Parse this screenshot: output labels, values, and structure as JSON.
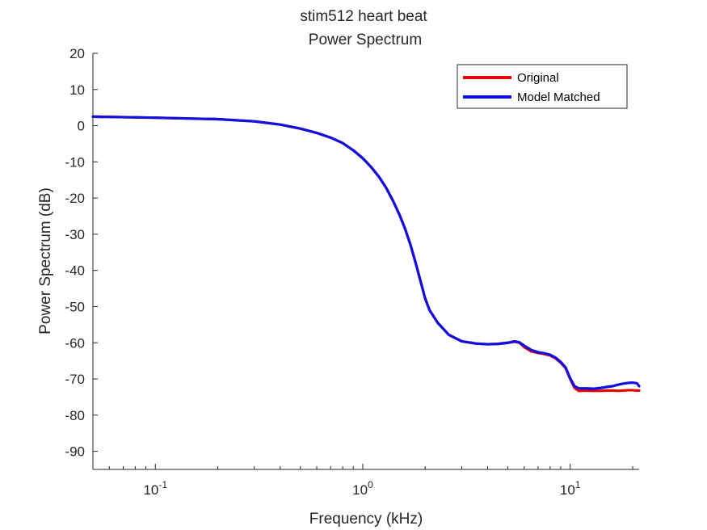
{
  "chart_data": {
    "type": "line",
    "title": "stim512 heart beat",
    "subtitle": "Power Spectrum",
    "xlabel": "Frequency (kHz)",
    "ylabel": "Power Spectrum (dB)",
    "x_scale": "log",
    "xlim": [
      0.05,
      21.5
    ],
    "ylim": [
      -95,
      20
    ],
    "x_ticks": [
      {
        "value": 0.1,
        "base": "10",
        "exp": "-1"
      },
      {
        "value": 1,
        "base": "10",
        "exp": "0"
      },
      {
        "value": 10,
        "base": "10",
        "exp": "1"
      }
    ],
    "y_ticks": [
      20,
      10,
      0,
      -10,
      -20,
      -30,
      -40,
      -50,
      -60,
      -70,
      -80,
      -90
    ],
    "grid": false,
    "legend_position": "top-right",
    "series": [
      {
        "name": "Original",
        "color": "#e60000",
        "x": [
          0.05,
          0.1,
          0.2,
          0.3,
          0.4,
          0.5,
          0.6,
          0.7,
          0.8,
          0.9,
          1.0,
          1.1,
          1.2,
          1.3,
          1.4,
          1.5,
          1.6,
          1.7,
          1.8,
          1.9,
          2.0,
          2.1,
          2.3,
          2.6,
          3.0,
          3.5,
          4.0,
          4.5,
          5.0,
          5.4,
          5.7,
          6.0,
          6.5,
          7.0,
          7.5,
          8.0,
          8.5,
          9.0,
          9.5,
          10.0,
          10.5,
          11.0,
          12.0,
          13.0,
          14.0,
          15.0,
          16.0,
          17.0,
          18.0,
          19.0,
          20.0,
          21.0,
          21.5
        ],
        "y": [
          2.5,
          2.2,
          1.8,
          1.2,
          0.3,
          -0.8,
          -2.0,
          -3.3,
          -4.8,
          -6.8,
          -9.0,
          -11.5,
          -14.2,
          -17.3,
          -20.8,
          -24.5,
          -28.5,
          -33.0,
          -38.0,
          -43.0,
          -47.8,
          -51.0,
          -54.5,
          -57.8,
          -59.6,
          -60.2,
          -60.4,
          -60.3,
          -60.0,
          -59.7,
          -60.0,
          -61.2,
          -62.4,
          -62.8,
          -63.1,
          -63.5,
          -64.3,
          -65.5,
          -67.0,
          -70.0,
          -72.5,
          -73.3,
          -73.2,
          -73.3,
          -73.3,
          -73.2,
          -73.2,
          -73.3,
          -73.2,
          -73.1,
          -73.1,
          -73.2,
          -73.2
        ]
      },
      {
        "name": "Model Matched",
        "color": "#1010e0",
        "x": [
          0.05,
          0.1,
          0.2,
          0.3,
          0.4,
          0.5,
          0.6,
          0.7,
          0.8,
          0.9,
          1.0,
          1.1,
          1.2,
          1.3,
          1.4,
          1.5,
          1.6,
          1.7,
          1.8,
          1.9,
          2.0,
          2.1,
          2.3,
          2.6,
          3.0,
          3.5,
          4.0,
          4.5,
          5.0,
          5.4,
          5.7,
          6.0,
          6.5,
          7.0,
          7.5,
          8.0,
          8.5,
          9.0,
          9.5,
          10.0,
          10.5,
          11.0,
          12.0,
          13.0,
          14.0,
          15.0,
          16.0,
          17.0,
          18.0,
          19.0,
          20.0,
          21.0,
          21.5
        ],
        "y": [
          2.5,
          2.2,
          1.8,
          1.2,
          0.3,
          -0.8,
          -2.0,
          -3.3,
          -4.8,
          -6.8,
          -9.0,
          -11.5,
          -14.2,
          -17.3,
          -20.8,
          -24.5,
          -28.5,
          -33.0,
          -38.0,
          -43.0,
          -47.8,
          -51.0,
          -54.5,
          -57.8,
          -59.6,
          -60.2,
          -60.4,
          -60.3,
          -60.0,
          -59.6,
          -59.9,
          -60.8,
          -62.0,
          -62.6,
          -62.9,
          -63.3,
          -64.1,
          -65.3,
          -66.8,
          -69.8,
          -72.0,
          -72.6,
          -72.6,
          -72.7,
          -72.5,
          -72.2,
          -72.0,
          -71.6,
          -71.3,
          -71.1,
          -71.0,
          -71.2,
          -72.0
        ]
      }
    ]
  }
}
